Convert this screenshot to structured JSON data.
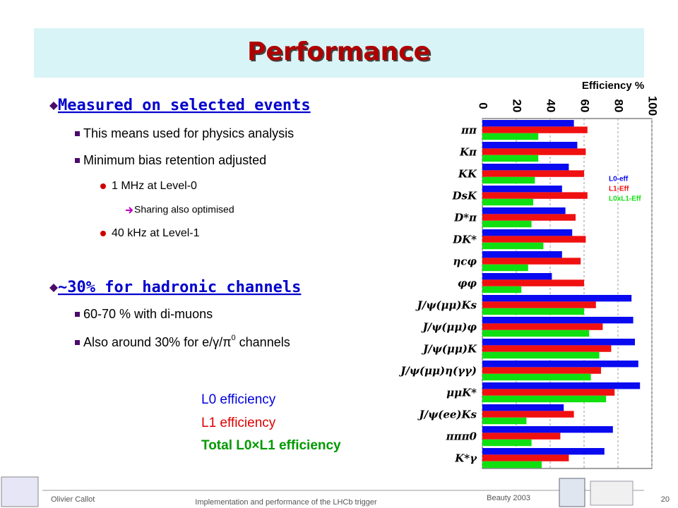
{
  "header": {
    "title": "Performance"
  },
  "bullets": [
    {
      "text": "Measured on selected events",
      "items": [
        {
          "text": "This means used for physics analysis"
        },
        {
          "text": "Minimum bias retention adjusted",
          "items": [
            {
              "text": "1 MHz at Level-0",
              "items": [
                {
                  "text": "Sharing also optimised"
                }
              ]
            },
            {
              "text": "40 kHz at Level-1"
            }
          ]
        }
      ]
    },
    {
      "text": "~30% for hadronic channels",
      "items": [
        {
          "text": "60-70 % with di-muons"
        },
        {
          "text": "Also around 30% for e/γ/π",
          "sup": "0",
          "tail": " channels"
        }
      ]
    }
  ],
  "legend_notes": [
    "L0 efficiency",
    "L1 efficiency",
    "Total L0×L1 efficiency"
  ],
  "footer": {
    "author": "Olivier Callot",
    "talk": "Implementation and performance of the LHCb trigger",
    "event": "Beauty 2003",
    "page": "20"
  },
  "chart_data": {
    "type": "barh",
    "xlabel": "Efficiency %",
    "categories": [
      "ππ",
      "Kπ",
      "KK",
      "DsK",
      "D*π",
      "DK*",
      "ηcφ",
      "φφ",
      "J/ψ(μμ)Ks",
      "J/ψ(μμ)φ",
      "J/ψ(μμ)K",
      "J/ψ(μμ)η(γγ)",
      "μμK*",
      "J/ψ(ee)Ks",
      "πππ0",
      "K*γ"
    ],
    "series": [
      {
        "name": "L0-eff",
        "color": "#0a0af0",
        "values": [
          54,
          56,
          51,
          47,
          49,
          53,
          47,
          41,
          88,
          89,
          90,
          92,
          93,
          48,
          77,
          72
        ]
      },
      {
        "name": "L1-Eff",
        "color": "#f01010",
        "values": [
          62,
          61,
          60,
          62,
          55,
          61,
          58,
          60,
          67,
          71,
          76,
          70,
          78,
          54,
          46,
          51
        ]
      },
      {
        "name": "L0xL1-Eff",
        "color": "#10e010",
        "values": [
          33,
          33,
          31,
          30,
          29,
          36,
          27,
          23,
          60,
          63,
          69,
          64,
          73,
          26,
          29,
          35
        ]
      }
    ],
    "xlim": [
      0,
      100
    ],
    "xticks": [
      0,
      20,
      40,
      60,
      80,
      100
    ],
    "grid": true
  }
}
